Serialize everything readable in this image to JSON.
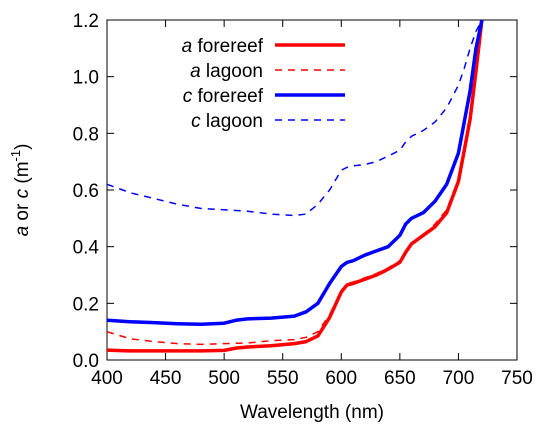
{
  "chart_data": {
    "type": "line",
    "xlabel": "Wavelength (nm)",
    "ylabel": {
      "parts": [
        "a",
        " or ",
        "c",
        " (m",
        "-1",
        ")"
      ]
    },
    "xlim": [
      400,
      750
    ],
    "ylim": [
      0,
      1.2
    ],
    "x_ticks": [
      400,
      450,
      500,
      550,
      600,
      650,
      700,
      750
    ],
    "y_ticks": [
      0.0,
      0.2,
      0.4,
      0.6,
      0.8,
      1.0,
      1.2
    ],
    "x_tick_labels": [
      "400",
      "450",
      "500",
      "550",
      "600",
      "650",
      "700",
      "750"
    ],
    "y_tick_labels": [
      "0.0",
      "0.2",
      "0.4",
      "0.6",
      "0.8",
      "1.0",
      "1.2"
    ],
    "grid": false,
    "legend_position": "top-left",
    "series": [
      {
        "name": "a forereef",
        "symbol": "a",
        "rest": " forereef",
        "color": "#ff0000",
        "dash": "solid",
        "width": "thick",
        "x": [
          400,
          420,
          440,
          460,
          480,
          500,
          510,
          520,
          540,
          560,
          570,
          580,
          590,
          600,
          605,
          610,
          620,
          630,
          640,
          650,
          655,
          660,
          670,
          680,
          690,
          700,
          710,
          715,
          720
        ],
        "y": [
          0.035,
          0.032,
          0.032,
          0.032,
          0.032,
          0.034,
          0.042,
          0.046,
          0.05,
          0.058,
          0.065,
          0.085,
          0.15,
          0.24,
          0.265,
          0.27,
          0.285,
          0.3,
          0.32,
          0.345,
          0.38,
          0.41,
          0.44,
          0.47,
          0.52,
          0.63,
          0.85,
          1.02,
          1.2
        ]
      },
      {
        "name": "a lagoon",
        "symbol": "a",
        "rest": " lagoon",
        "color": "#ff0000",
        "dash": "dashed",
        "width": "thin",
        "x": [
          400,
          420,
          440,
          460,
          480,
          500,
          520,
          540,
          560,
          570,
          580,
          590,
          600,
          605,
          610,
          620,
          630,
          640,
          650,
          655,
          660,
          670,
          680,
          690,
          700,
          710,
          715,
          720
        ],
        "y": [
          0.1,
          0.075,
          0.065,
          0.058,
          0.055,
          0.058,
          0.06,
          0.068,
          0.072,
          0.08,
          0.1,
          0.16,
          0.245,
          0.27,
          0.275,
          0.29,
          0.305,
          0.325,
          0.35,
          0.38,
          0.41,
          0.44,
          0.48,
          0.53,
          0.64,
          0.87,
          1.05,
          1.2
        ]
      },
      {
        "name": "c forereef",
        "symbol": "c",
        "rest": " forereef",
        "color": "#0000ff",
        "dash": "solid",
        "width": "thick",
        "x": [
          400,
          420,
          440,
          460,
          480,
          500,
          510,
          520,
          540,
          560,
          570,
          580,
          590,
          600,
          605,
          610,
          620,
          630,
          640,
          650,
          655,
          660,
          670,
          680,
          690,
          700,
          710,
          715,
          720
        ],
        "y": [
          0.14,
          0.135,
          0.132,
          0.128,
          0.126,
          0.13,
          0.14,
          0.145,
          0.148,
          0.155,
          0.17,
          0.2,
          0.27,
          0.33,
          0.345,
          0.35,
          0.37,
          0.385,
          0.4,
          0.44,
          0.48,
          0.5,
          0.52,
          0.56,
          0.62,
          0.73,
          0.95,
          1.1,
          1.2
        ]
      },
      {
        "name": "c lagoon",
        "symbol": "c",
        "rest": " lagoon",
        "color": "#0000ff",
        "dash": "dashed",
        "width": "thin",
        "x": [
          400,
          420,
          440,
          460,
          480,
          500,
          520,
          540,
          560,
          570,
          580,
          590,
          600,
          605,
          610,
          620,
          630,
          640,
          650,
          655,
          660,
          670,
          680,
          690,
          700,
          705,
          710,
          715,
          720
        ],
        "y": [
          0.62,
          0.59,
          0.57,
          0.55,
          0.535,
          0.53,
          0.525,
          0.515,
          0.51,
          0.515,
          0.55,
          0.6,
          0.67,
          0.68,
          0.685,
          0.69,
          0.7,
          0.72,
          0.74,
          0.77,
          0.79,
          0.81,
          0.84,
          0.89,
          0.97,
          1.03,
          1.1,
          1.16,
          1.2
        ]
      }
    ]
  }
}
